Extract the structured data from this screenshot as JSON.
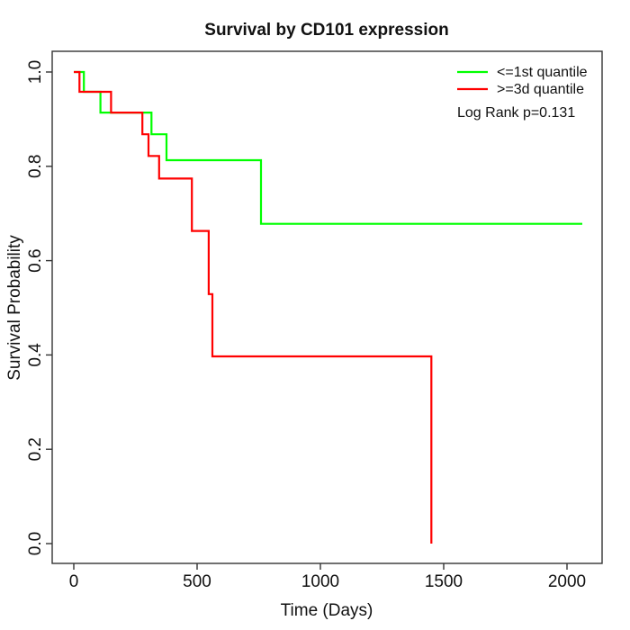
{
  "chart_data": {
    "type": "line",
    "chart_style": "kaplan-meier-survival-step",
    "title": "Survival by CD101 expression",
    "xlabel": "Time (Days)",
    "ylabel": "Survival Probability",
    "xlim": [
      0,
      2065
    ],
    "ylim": [
      0.0,
      1.0
    ],
    "x_ticks": [
      0,
      500,
      1000,
      1500,
      2000
    ],
    "x_tick_labels": [
      "0",
      "500",
      "1000",
      "1500",
      "2000"
    ],
    "y_ticks": [
      0.0,
      0.2,
      0.4,
      0.6,
      0.8,
      1.0
    ],
    "y_tick_labels": [
      "0.0",
      "0.2",
      "0.4",
      "0.6",
      "0.8",
      "1.0"
    ],
    "grid": false,
    "legend_position": "topright",
    "annotations": [
      "Log Rank p=0.131"
    ],
    "series": [
      {
        "name": "<=1st quantile",
        "color": "#00ff00",
        "start": [
          0,
          1.0
        ],
        "events": [
          [
            41,
            0.958
          ],
          [
            108,
            0.914
          ],
          [
            315,
            0.868
          ],
          [
            376,
            0.813
          ],
          [
            759,
            0.678
          ]
        ],
        "end_time": 2062,
        "end_probability": 0.678
      },
      {
        "name": ">=3d quantile",
        "color": "#ff0000",
        "start": [
          0,
          1.0
        ],
        "events": [
          [
            23,
            0.958
          ],
          [
            151,
            0.914
          ],
          [
            278,
            0.868
          ],
          [
            303,
            0.822
          ],
          [
            346,
            0.774
          ],
          [
            479,
            0.663
          ],
          [
            547,
            0.529
          ],
          [
            562,
            0.397
          ],
          [
            1450,
            0.0
          ]
        ],
        "end_time": 1450,
        "end_probability": 0.0
      }
    ]
  }
}
